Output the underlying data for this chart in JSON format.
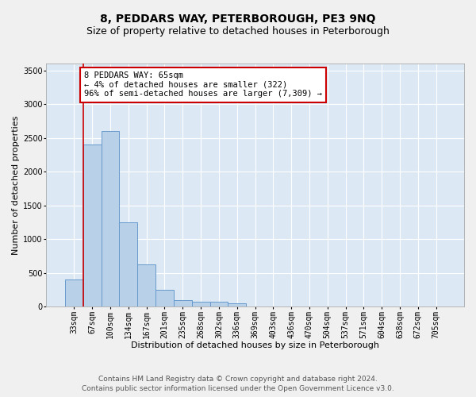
{
  "title": "8, PEDDARS WAY, PETERBOROUGH, PE3 9NQ",
  "subtitle": "Size of property relative to detached houses in Peterborough",
  "xlabel": "Distribution of detached houses by size in Peterborough",
  "ylabel": "Number of detached properties",
  "categories": [
    "33sqm",
    "67sqm",
    "100sqm",
    "134sqm",
    "167sqm",
    "201sqm",
    "235sqm",
    "268sqm",
    "302sqm",
    "336sqm",
    "369sqm",
    "403sqm",
    "436sqm",
    "470sqm",
    "504sqm",
    "537sqm",
    "571sqm",
    "604sqm",
    "638sqm",
    "672sqm",
    "705sqm"
  ],
  "values": [
    400,
    2400,
    2600,
    1250,
    625,
    250,
    100,
    75,
    75,
    50,
    10,
    10,
    0,
    0,
    0,
    0,
    0,
    0,
    0,
    0,
    0
  ],
  "bar_color": "#b8d0e8",
  "bar_edge_color": "#6699cc",
  "marker_line_color": "#cc0000",
  "annotation_box_color": "#ffffff",
  "annotation_border_color": "#cc0000",
  "marker_label_line1": "8 PEDDARS WAY: 65sqm",
  "marker_label_line2": "← 4% of detached houses are smaller (322)",
  "marker_label_line3": "96% of semi-detached houses are larger (7,309) →",
  "ylim": [
    0,
    3600
  ],
  "yticks": [
    0,
    500,
    1000,
    1500,
    2000,
    2500,
    3000,
    3500
  ],
  "background_color": "#dce9f5",
  "grid_color": "#ffffff",
  "fig_bg_color": "#f0f0f0",
  "footer1": "Contains HM Land Registry data © Crown copyright and database right 2024.",
  "footer2": "Contains public sector information licensed under the Open Government Licence v3.0.",
  "title_fontsize": 10,
  "subtitle_fontsize": 9,
  "axis_label_fontsize": 8,
  "tick_fontsize": 7,
  "annotation_fontsize": 7.5,
  "footer_fontsize": 6.5
}
